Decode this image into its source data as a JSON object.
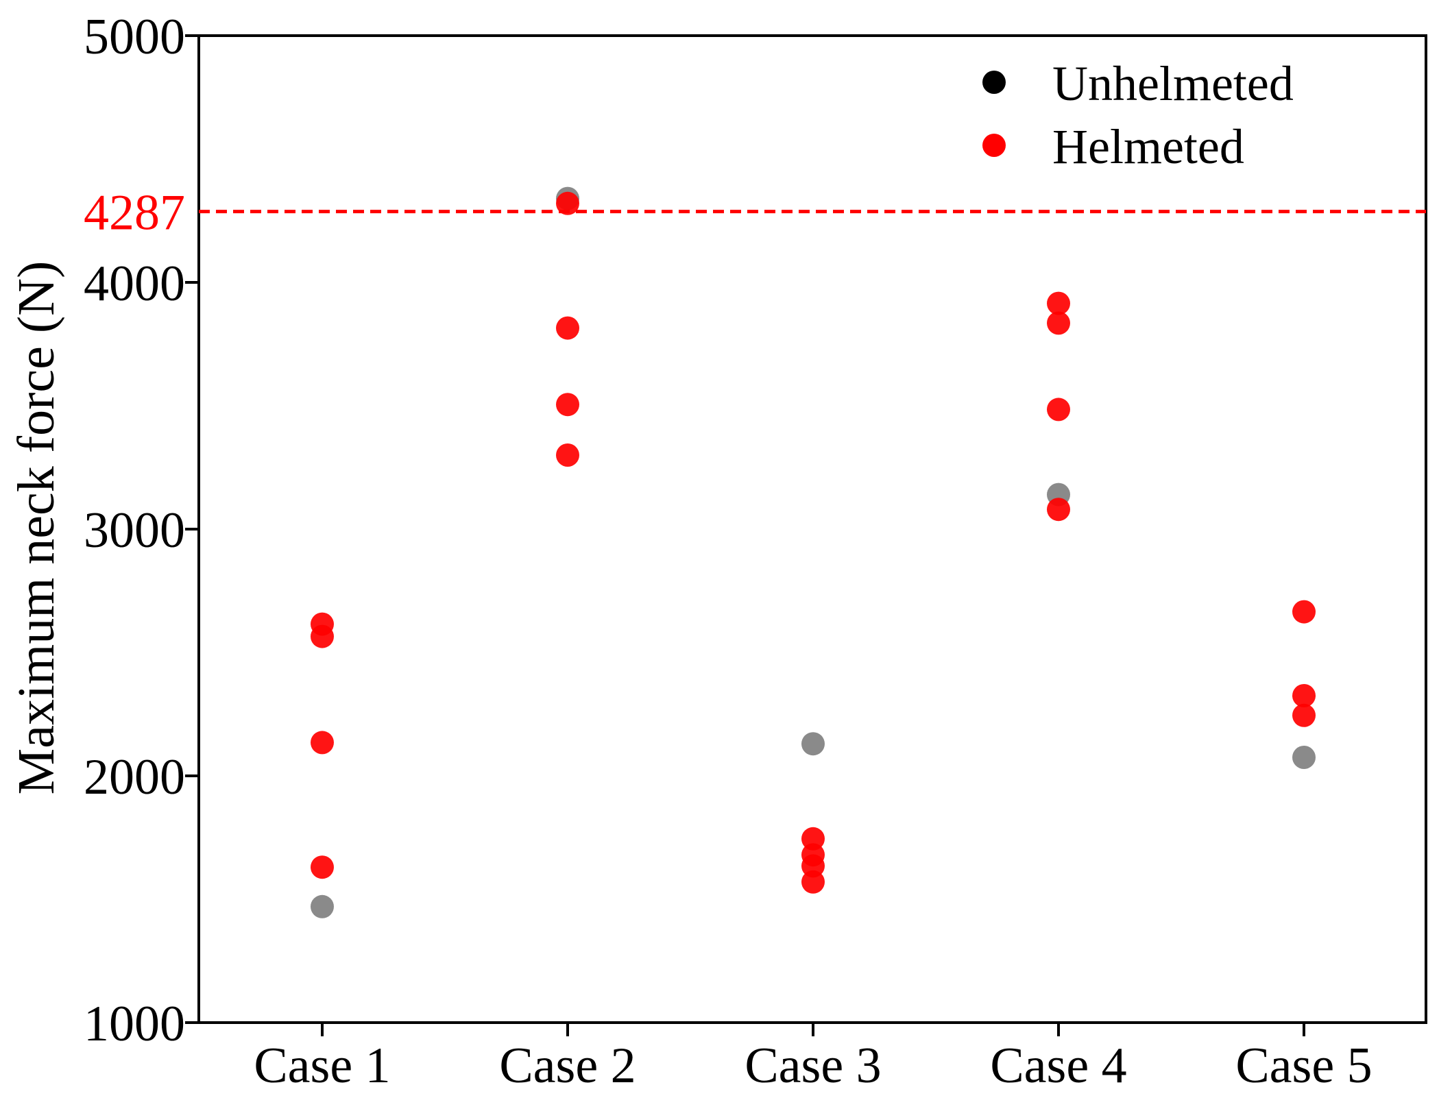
{
  "chart_data": {
    "type": "scatter",
    "title": "",
    "xlabel": "",
    "ylabel": "Maximum neck force (N)",
    "categories": [
      "Case 1",
      "Case 2",
      "Case 3",
      "Case 4",
      "Case 5"
    ],
    "ylim": [
      1000,
      5000
    ],
    "yticks": [
      "1000",
      "2000",
      "3000",
      "4000",
      "5000"
    ],
    "grid": false,
    "legend_position": "top-right",
    "reference_line": {
      "value": 4287,
      "label": "4287",
      "color": "#ff0000",
      "style": "dashed"
    },
    "series": [
      {
        "name": "Unhelmeted",
        "legend_color": "#000000",
        "color": "#808080",
        "points": [
          {
            "category": "Case 1",
            "value": 1470
          },
          {
            "category": "Case 2",
            "value": 4340
          },
          {
            "category": "Case 3",
            "value": 2130
          },
          {
            "category": "Case 4",
            "value": 3140
          },
          {
            "category": "Case 5",
            "value": 2075
          }
        ]
      },
      {
        "name": "Helmeted",
        "legend_color": "#ff0000",
        "color": "#ff0000",
        "points": [
          {
            "category": "Case 1",
            "value": 2615
          },
          {
            "category": "Case 1",
            "value": 2565
          },
          {
            "category": "Case 1",
            "value": 2135
          },
          {
            "category": "Case 1",
            "value": 1630
          },
          {
            "category": "Case 2",
            "value": 4320
          },
          {
            "category": "Case 2",
            "value": 3815
          },
          {
            "category": "Case 2",
            "value": 3505
          },
          {
            "category": "Case 2",
            "value": 3300
          },
          {
            "category": "Case 3",
            "value": 1745
          },
          {
            "category": "Case 3",
            "value": 1680
          },
          {
            "category": "Case 3",
            "value": 1635
          },
          {
            "category": "Case 3",
            "value": 1570
          },
          {
            "category": "Case 4",
            "value": 3915
          },
          {
            "category": "Case 4",
            "value": 3835
          },
          {
            "category": "Case 4",
            "value": 3485
          },
          {
            "category": "Case 4",
            "value": 3080
          },
          {
            "category": "Case 5",
            "value": 2665
          },
          {
            "category": "Case 5",
            "value": 2325
          },
          {
            "category": "Case 5",
            "value": 2245
          }
        ]
      }
    ]
  }
}
